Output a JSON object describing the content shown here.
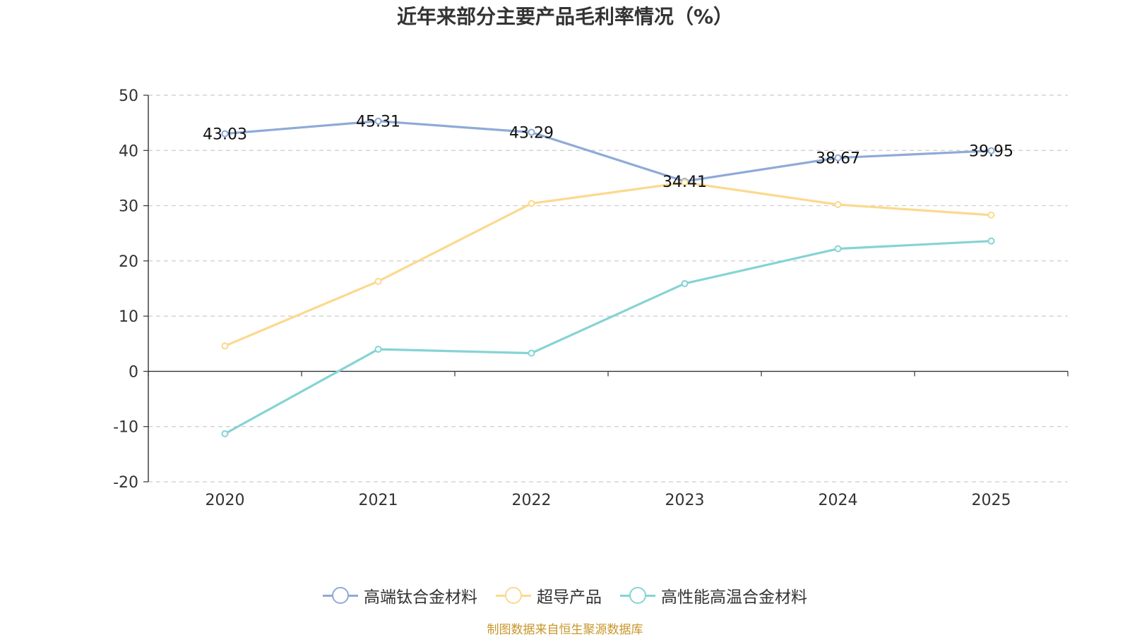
{
  "title": "近年来部分主要产品毛利率情况（%）",
  "source": "制图数据来自恒生聚源数据库",
  "chart_data": {
    "type": "line",
    "title": "近年来部分主要产品毛利率情况（%）",
    "categories": [
      "2020",
      "2021",
      "2022",
      "2023",
      "2024",
      "2025"
    ],
    "ylim": [
      -20,
      50
    ],
    "yticks": [
      "50",
      "40",
      "30",
      "20",
      "10",
      "0",
      "-10",
      "-20"
    ],
    "grid": true,
    "legend_position": "bottom",
    "series": [
      {
        "name": "高端钛合金材料",
        "color": "#8eaad8",
        "values": [
          43.03,
          45.31,
          43.29,
          34.41,
          38.67,
          39.95
        ],
        "labels": [
          "43.03",
          "45.31",
          "43.29",
          "34.41",
          "38.67",
          "39.95"
        ]
      },
      {
        "name": "超导产品",
        "color": "#fbd98e",
        "values": [
          4.6,
          16.3,
          30.4,
          34.2,
          30.2,
          28.3
        ]
      },
      {
        "name": "高性能高温合金材料",
        "color": "#86d3d4",
        "values": [
          -11.3,
          4.0,
          3.3,
          15.9,
          22.2,
          23.6
        ]
      }
    ]
  }
}
